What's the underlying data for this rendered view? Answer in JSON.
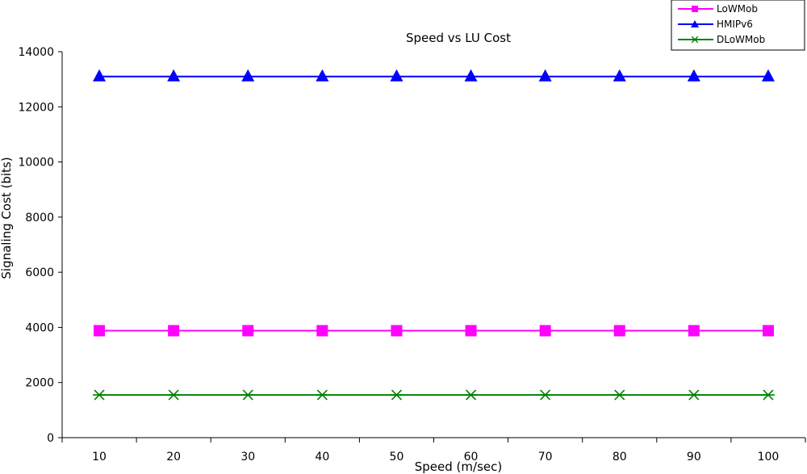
{
  "chart_data": {
    "type": "line",
    "title": "Speed vs LU Cost",
    "xlabel": "Speed (m/sec)",
    "ylabel": "Signaling Cost (bits)",
    "categories": [
      "10",
      "20",
      "30",
      "40",
      "50",
      "60",
      "70",
      "80",
      "90",
      "100"
    ],
    "ylim": [
      0,
      14000
    ],
    "yticks": [
      "0",
      "2000",
      "4000",
      "6000",
      "8000",
      "10000",
      "12000",
      "14000"
    ],
    "grid": false,
    "legend_position": "top-right",
    "series": [
      {
        "name": "LoWMob",
        "values": [
          3880,
          3880,
          3880,
          3880,
          3880,
          3880,
          3880,
          3880,
          3880,
          3880
        ],
        "color": "#FF00FF",
        "marker": "square"
      },
      {
        "name": "HMIPv6",
        "values": [
          13100,
          13100,
          13100,
          13100,
          13100,
          13100,
          13100,
          13100,
          13100,
          13100
        ],
        "color": "#0000FF",
        "marker": "triangle"
      },
      {
        "name": "DLoWMob",
        "values": [
          1550,
          1550,
          1550,
          1550,
          1550,
          1550,
          1550,
          1550,
          1550,
          1550
        ],
        "color": "#008000",
        "marker": "asterisk"
      }
    ]
  }
}
